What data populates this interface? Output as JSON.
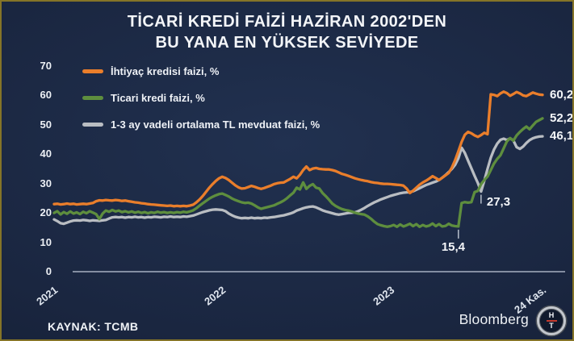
{
  "header": {
    "title_line1": "TİCARİ KREDİ FAİZİ HAZİRAN 2002'DEN",
    "title_line2": "BU YANA EN YÜKSEK SEVİYEDE"
  },
  "source": {
    "label": "KAYNAK: TCMB"
  },
  "logo": {
    "brand": "Bloomberg",
    "badge_top": "H",
    "badge_bottom": "T"
  },
  "colors": {
    "background": "#1a2640",
    "border": "#857427",
    "orange": "#ea7e2b",
    "green": "#5e8e3e",
    "gray": "#b9bdc2",
    "axis": "#c2cbda",
    "text": "#f3f5f8"
  },
  "chart_data": {
    "type": "line",
    "title": "TİCARİ KREDİ FAİZİ HAZİRAN 2002'DEN BU YANA EN YÜKSEK SEVİYEDE",
    "x_unit": "weeks from Jan 2021 to 24 Nov 2023",
    "ylim": [
      0,
      70
    ],
    "grid": false,
    "legend_position": "top-left",
    "yticks": [
      0,
      10,
      20,
      30,
      40,
      50,
      60,
      70
    ],
    "xticks": [
      {
        "label": "2021",
        "i": 0
      },
      {
        "label": "2022",
        "i": 52
      },
      {
        "label": "2023",
        "i": 104
      },
      {
        "label": "24 Kas.",
        "i": 151
      }
    ],
    "series": [
      {
        "name": "İhtiyaç kredisi faizi, %",
        "color": "#ea7e2b",
        "end_label": "60,2",
        "values": [
          23.0,
          23.1,
          22.9,
          23.0,
          23.2,
          23.0,
          23.1,
          22.9,
          23.0,
          23.1,
          23.0,
          23.2,
          23.4,
          24.0,
          24.3,
          24.2,
          24.4,
          24.3,
          24.2,
          24.4,
          24.3,
          24.1,
          24.2,
          24.0,
          23.8,
          23.6,
          23.5,
          23.3,
          23.2,
          23.0,
          22.9,
          22.8,
          22.7,
          22.6,
          22.5,
          22.4,
          22.5,
          22.3,
          22.4,
          22.3,
          22.4,
          22.3,
          22.5,
          22.8,
          23.6,
          24.6,
          25.8,
          27.2,
          28.6,
          29.8,
          30.9,
          31.8,
          32.3,
          31.9,
          31.2,
          30.3,
          29.4,
          28.7,
          28.3,
          28.4,
          28.8,
          29.2,
          28.9,
          28.5,
          28.2,
          28.5,
          28.9,
          29.3,
          29.8,
          30.1,
          30.3,
          30.4,
          31.0,
          31.6,
          32.3,
          31.8,
          33.0,
          34.6,
          35.8,
          34.6,
          35.1,
          35.3,
          35.0,
          34.9,
          34.8,
          34.8,
          34.6,
          34.3,
          33.8,
          33.3,
          33.0,
          32.6,
          32.2,
          31.8,
          31.5,
          31.2,
          31.0,
          30.8,
          30.5,
          30.3,
          30.2,
          30.0,
          29.9,
          29.9,
          29.8,
          29.7,
          29.6,
          29.5,
          29.3,
          28.3,
          26.8,
          27.6,
          28.6,
          29.6,
          30.4,
          31.0,
          31.7,
          32.5,
          31.9,
          31.2,
          32.0,
          32.8,
          33.6,
          35.5,
          38.0,
          41.0,
          44.2,
          46.6,
          47.6,
          47.1,
          46.4,
          45.9,
          46.5,
          47.3,
          46.8,
          60.4,
          60.2,
          59.8,
          60.7,
          61.3,
          60.8,
          59.9,
          60.5,
          61.2,
          60.7,
          60.0,
          59.8,
          60.4,
          61.0,
          60.6,
          60.3,
          60.2
        ]
      },
      {
        "name": "Ticari kredi faizi, %",
        "color": "#5e8e3e",
        "end_label": "52,2",
        "values": [
          20.0,
          20.6,
          19.5,
          20.3,
          19.7,
          20.5,
          19.8,
          20.2,
          19.6,
          20.4,
          19.9,
          20.6,
          20.1,
          19.6,
          17.9,
          19.8,
          20.8,
          20.4,
          21.0,
          20.5,
          20.8,
          20.3,
          20.6,
          20.2,
          20.5,
          20.1,
          20.4,
          20.0,
          20.3,
          19.9,
          20.2,
          20.0,
          20.4,
          20.1,
          20.3,
          20.0,
          20.2,
          20.0,
          20.3,
          20.1,
          20.4,
          20.2,
          20.5,
          20.9,
          21.6,
          22.5,
          23.3,
          24.1,
          24.9,
          25.5,
          26.0,
          26.4,
          26.6,
          26.1,
          25.6,
          24.9,
          24.4,
          24.0,
          23.6,
          23.4,
          23.5,
          23.2,
          22.6,
          21.9,
          21.4,
          21.7,
          22.0,
          22.3,
          22.6,
          23.1,
          23.6,
          24.2,
          25.0,
          26.0,
          26.9,
          28.6,
          28.0,
          30.4,
          28.2,
          29.2,
          29.8,
          28.6,
          28.3,
          26.8,
          25.7,
          24.5,
          23.2,
          22.4,
          21.8,
          21.3,
          21.0,
          20.8,
          20.5,
          20.1,
          19.8,
          19.6,
          19.4,
          18.8,
          18.0,
          17.0,
          16.2,
          15.8,
          15.5,
          15.3,
          15.5,
          15.9,
          15.3,
          16.1,
          15.4,
          15.8,
          16.3,
          15.5,
          16.2,
          15.3,
          15.9,
          15.4,
          15.7,
          16.4,
          15.5,
          16.2,
          15.4,
          15.6,
          16.3,
          15.7,
          15.5,
          15.4,
          23.4,
          23.7,
          23.5,
          23.7,
          27.1,
          27.5,
          29.8,
          31.2,
          32.4,
          34.6,
          36.8,
          38.4,
          39.6,
          42.0,
          44.4,
          45.5,
          44.6,
          46.4,
          47.6,
          48.6,
          49.4,
          48.5,
          49.8,
          51.0,
          51.6,
          52.2
        ]
      },
      {
        "name": "1-3 ay vadeli ortalama TL mevduat faizi, %",
        "color": "#b9bdc2",
        "end_label": "46,1",
        "values": [
          17.8,
          17.2,
          16.5,
          16.3,
          16.7,
          17.1,
          17.4,
          17.5,
          17.4,
          17.6,
          17.5,
          17.3,
          17.5,
          17.4,
          17.3,
          17.5,
          17.6,
          18.1,
          18.5,
          18.6,
          18.5,
          18.6,
          18.4,
          18.6,
          18.5,
          18.7,
          18.5,
          18.6,
          18.4,
          18.6,
          18.5,
          18.7,
          18.6,
          18.5,
          18.7,
          18.6,
          18.8,
          18.6,
          18.7,
          18.6,
          18.8,
          18.7,
          18.9,
          19.1,
          19.5,
          19.9,
          20.3,
          20.6,
          20.9,
          21.1,
          21.2,
          21.1,
          21.0,
          20.6,
          19.8,
          19.2,
          18.7,
          18.4,
          18.2,
          18.3,
          18.2,
          18.4,
          18.2,
          18.3,
          18.2,
          18.4,
          18.3,
          18.5,
          18.6,
          18.8,
          19.0,
          19.2,
          19.5,
          19.8,
          20.2,
          20.8,
          21.2,
          21.6,
          21.9,
          22.1,
          22.2,
          21.9,
          21.4,
          20.9,
          20.5,
          20.2,
          19.9,
          19.6,
          19.4,
          19.6,
          19.8,
          20.0,
          20.1,
          20.2,
          20.6,
          21.1,
          21.7,
          22.4,
          23.0,
          23.6,
          24.1,
          24.6,
          25.0,
          25.4,
          25.8,
          26.1,
          26.4,
          26.7,
          26.9,
          27.0,
          27.1,
          27.4,
          27.9,
          28.4,
          29.0,
          29.5,
          29.9,
          30.3,
          30.7,
          31.2,
          32.0,
          32.9,
          33.9,
          35.0,
          36.4,
          38.6,
          42.2,
          40.4,
          37.8,
          35.2,
          32.6,
          30.2,
          27.3,
          31.0,
          35.0,
          38.8,
          41.6,
          43.6,
          44.9,
          45.3,
          44.8,
          45.4,
          44.7,
          42.4,
          41.8,
          42.6,
          43.8,
          44.8,
          45.4,
          45.8,
          46.0,
          46.1
        ]
      }
    ],
    "annotations": [
      {
        "text": "15,4",
        "series": 1,
        "i": 125,
        "value": 15.4,
        "placement": "below"
      },
      {
        "text": "27,3",
        "series": 2,
        "i": 132,
        "value": 27.3,
        "placement": "right-below"
      }
    ]
  }
}
